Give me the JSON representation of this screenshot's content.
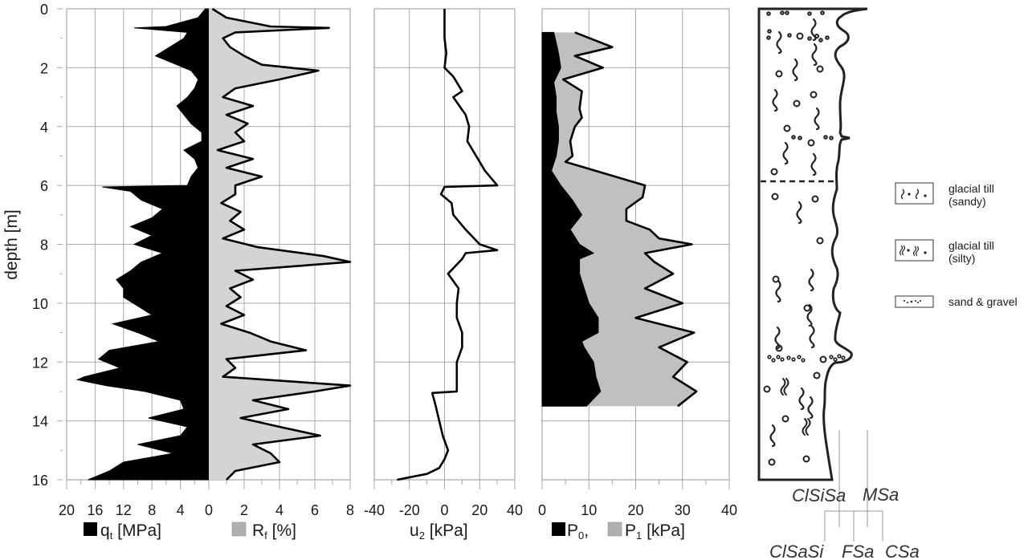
{
  "figure": {
    "y_axis_title": "depth [m]",
    "depth_ticks": [
      "0",
      "2",
      "4",
      "6",
      "8",
      "10",
      "12",
      "14",
      "16"
    ],
    "panels": [
      {
        "id": "qt_rf",
        "left_ticks": [
          "20",
          "16",
          "12",
          "8",
          "4",
          "0"
        ],
        "right_ticks": [
          "2",
          "4",
          "6",
          "8"
        ],
        "legend": [
          {
            "swatch": "#000000",
            "label": "q",
            "sub": "t",
            "unit": " [MPa]"
          },
          {
            "swatch": "#b0b0b0",
            "label": "R",
            "sub": "f",
            "unit": " [%]"
          }
        ]
      },
      {
        "id": "u2",
        "ticks": [
          "-40",
          "-20",
          "0",
          "20",
          "40"
        ],
        "title_main": "u",
        "title_sub": "2",
        "title_unit": " [kPa]"
      },
      {
        "id": "p0_p1",
        "ticks": [
          "0",
          "10",
          "20",
          "30",
          "40"
        ],
        "legend": [
          {
            "swatch": "#000000",
            "label": "P",
            "sub": "0",
            "unit": ","
          },
          {
            "swatch": "#b0b0b0",
            "label": "P",
            "sub": "1",
            "unit": " [kPa]"
          }
        ]
      }
    ],
    "strat_legend": [
      {
        "label_line1": "glacial till",
        "label_line2": "(sandy)"
      },
      {
        "label_line1": "glacial till",
        "label_line2": "(silty)"
      },
      {
        "label_line1": "sand & gravel",
        "label_line2": ""
      }
    ],
    "soil_scale": {
      "upper": [
        "ClSiSa",
        "MSa"
      ],
      "lower": [
        "ClSaSi",
        "FSa",
        "CSa"
      ]
    }
  },
  "chart_data": [
    {
      "type": "area",
      "title": "Cone resistance q_t",
      "xlabel": "q_t [MPa]",
      "ylabel": "depth [m]",
      "xlim": [
        20,
        0
      ],
      "ylim": [
        16,
        0
      ],
      "grid": true,
      "x_ticks": [
        20,
        16,
        12,
        8,
        4,
        0
      ],
      "depth": [
        0,
        0.3,
        0.6,
        0.65,
        0.8,
        1.0,
        1.3,
        1.6,
        1.9,
        2.1,
        2.4,
        2.7,
        3.0,
        3.3,
        3.6,
        3.9,
        4.2,
        4.5,
        4.8,
        5.1,
        5.4,
        5.7,
        6.0,
        6.05,
        6.2,
        6.5,
        6.8,
        7.1,
        7.4,
        7.7,
        8.0,
        8.3,
        8.6,
        8.9,
        9.2,
        9.5,
        9.8,
        10.1,
        10.4,
        10.7,
        11.0,
        11.3,
        11.6,
        11.9,
        12.2,
        12.5,
        12.6,
        12.8,
        13.0,
        13.3,
        13.6,
        13.9,
        14.2,
        14.5,
        14.8,
        15.1,
        15.4,
        15.7,
        16.0
      ],
      "values": [
        0.5,
        1.5,
        6.0,
        10.5,
        3.0,
        3.5,
        5.5,
        7.5,
        4.5,
        2.5,
        1.5,
        2.0,
        3.0,
        4.5,
        3.5,
        2.5,
        1.0,
        1.0,
        3.5,
        2.0,
        1.5,
        2.5,
        3.0,
        15.0,
        11.0,
        9.5,
        6.5,
        8.0,
        11.0,
        8.0,
        10.5,
        6.5,
        9.5,
        11.0,
        13.0,
        12.0,
        12.0,
        10.0,
        8.0,
        13.5,
        10.0,
        7.0,
        14.0,
        15.5,
        12.5,
        17.5,
        18.5,
        14.5,
        9.0,
        4.0,
        3.5,
        8.5,
        3.0,
        4.0,
        10.0,
        5.0,
        12.0,
        14.0,
        17.0
      ]
    },
    {
      "type": "area",
      "title": "Friction ratio R_f",
      "xlabel": "R_f [%]",
      "ylabel": "depth [m]",
      "xlim": [
        0,
        8
      ],
      "ylim": [
        16,
        0
      ],
      "grid": true,
      "x_ticks": [
        0,
        2,
        4,
        6,
        8
      ],
      "depth": [
        0,
        0.3,
        0.6,
        0.65,
        0.8,
        1.0,
        1.3,
        1.6,
        1.9,
        2.1,
        2.4,
        2.7,
        3.0,
        3.3,
        3.6,
        3.9,
        4.2,
        4.5,
        4.8,
        5.1,
        5.4,
        5.7,
        6.0,
        6.3,
        6.6,
        6.9,
        7.2,
        7.5,
        7.8,
        8.1,
        8.4,
        8.6,
        8.9,
        9.2,
        9.5,
        9.8,
        10.1,
        10.4,
        10.7,
        11.0,
        11.3,
        11.6,
        11.9,
        12.2,
        12.5,
        12.8,
        13.0,
        13.3,
        13.6,
        13.9,
        14.2,
        14.5,
        14.8,
        15.1,
        15.4,
        15.7,
        16.0
      ],
      "values": [
        0.2,
        1.0,
        3.5,
        6.8,
        1.5,
        0.8,
        1.2,
        2.0,
        3.0,
        6.2,
        4.0,
        1.5,
        0.8,
        2.5,
        1.0,
        2.2,
        1.5,
        2.0,
        0.5,
        2.5,
        1.0,
        3.0,
        1.5,
        1.5,
        0.7,
        1.8,
        1.2,
        2.0,
        0.8,
        2.8,
        6.5,
        8.0,
        1.5,
        2.5,
        1.2,
        1.8,
        1.0,
        2.0,
        0.7,
        2.3,
        3.5,
        5.5,
        1.0,
        1.5,
        0.8,
        8.0,
        6.0,
        2.5,
        4.5,
        1.8,
        4.0,
        6.3,
        2.5,
        3.5,
        4.0,
        1.5,
        1.0
      ]
    },
    {
      "type": "line",
      "title": "Pore pressure u_2",
      "xlabel": "u_2 [kPa]",
      "ylabel": "depth [m]",
      "xlim": [
        -40,
        40
      ],
      "ylim": [
        16,
        0
      ],
      "grid": true,
      "x_ticks": [
        -40,
        -20,
        0,
        20,
        40
      ],
      "depth": [
        0,
        0.5,
        1.0,
        1.5,
        2.0,
        2.3,
        2.8,
        3.0,
        3.6,
        4.0,
        4.5,
        5.0,
        5.5,
        6.0,
        6.05,
        6.3,
        6.6,
        7.0,
        7.5,
        8.0,
        8.2,
        8.3,
        8.5,
        9.0,
        9.5,
        10.0,
        10.5,
        11.0,
        11.5,
        12.0,
        12.5,
        13.0,
        13.05,
        13.5,
        14.0,
        14.5,
        15.0,
        15.3,
        15.6,
        15.8,
        16.0
      ],
      "values": [
        0,
        0,
        0,
        1,
        0,
        5,
        10,
        5,
        12,
        14,
        13,
        18,
        23,
        30,
        0,
        -2,
        4,
        5,
        12,
        20,
        30,
        12,
        10,
        2,
        8,
        7,
        7,
        10,
        10,
        7,
        7,
        7,
        -7,
        -5,
        -3,
        -1,
        2,
        0,
        -3,
        -10,
        -27
      ]
    },
    {
      "type": "area",
      "title": "DMT pressures P_0 and P_1",
      "xlabel": "P_0, P_1 [kPa]",
      "ylabel": "depth [m]",
      "xlim": [
        0,
        40
      ],
      "ylim": [
        16,
        0
      ],
      "grid": true,
      "x_ticks": [
        0,
        10,
        20,
        30,
        40
      ],
      "series": [
        {
          "name": "P_0",
          "color": "#000000",
          "depth": [
            0.8,
            1.5,
            2.0,
            2.5,
            3.0,
            3.5,
            4.0,
            4.5,
            5.0,
            5.5,
            6.0,
            6.5,
            7.0,
            7.5,
            8.0,
            8.3,
            8.5,
            9.0,
            9.5,
            10.0,
            10.5,
            11.0,
            11.3,
            11.5,
            12.0,
            12.5,
            13.0,
            13.5
          ],
          "values": [
            2.5,
            3.5,
            4.0,
            2.5,
            3.0,
            3.0,
            3.5,
            3.5,
            3.0,
            2.0,
            4.0,
            6.5,
            8.5,
            6.0,
            8.0,
            11.0,
            8.0,
            8.0,
            9.0,
            10.0,
            12.0,
            12.0,
            8.5,
            9.0,
            11.0,
            11.5,
            12.5,
            9.5
          ]
        },
        {
          "name": "P_1",
          "color": "#c0c0c0",
          "depth": [
            0.8,
            1.3,
            1.6,
            2.0,
            2.4,
            2.8,
            3.4,
            3.7,
            4.0,
            4.5,
            5.0,
            5.2,
            6.0,
            6.4,
            6.8,
            7.2,
            7.5,
            7.8,
            8.0,
            8.3,
            8.6,
            9.0,
            9.5,
            10.0,
            10.5,
            11.0,
            11.5,
            12.0,
            12.5,
            13.0,
            13.5
          ],
          "values": [
            7.0,
            15.0,
            7.0,
            13.0,
            4.5,
            8.5,
            8.0,
            8.5,
            7.0,
            6.0,
            6.5,
            5.0,
            22.0,
            21.5,
            18.0,
            18.0,
            23.0,
            25.0,
            32.0,
            22.0,
            24.0,
            28.0,
            22.0,
            30.0,
            20.0,
            32.5,
            25.0,
            31.0,
            28.0,
            33.0,
            29.0
          ]
        }
      ]
    }
  ]
}
